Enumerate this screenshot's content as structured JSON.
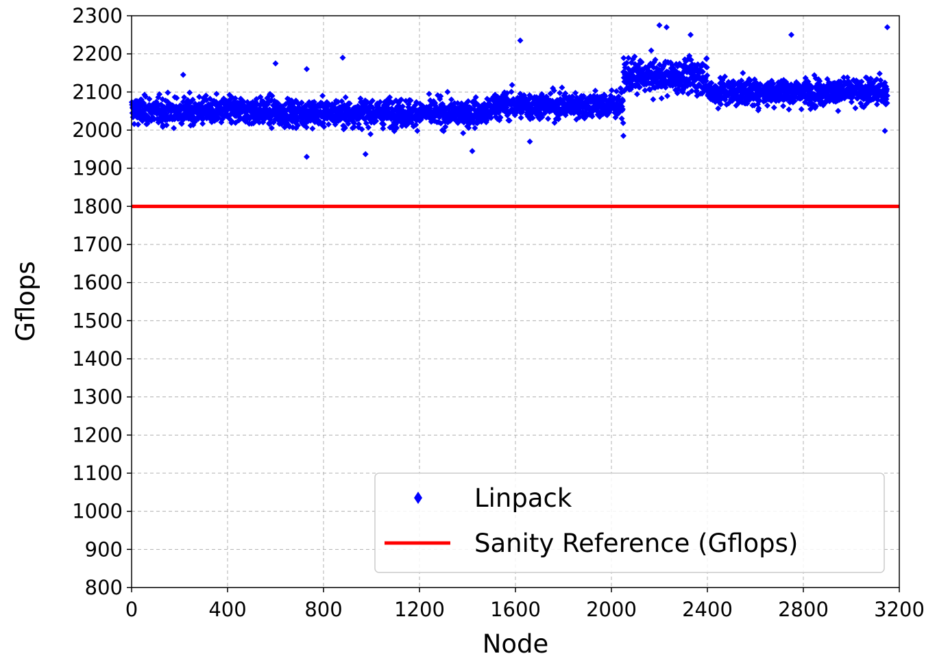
{
  "chart_data": {
    "type": "scatter",
    "title": "",
    "xlabel": "Node",
    "ylabel": "Gflops",
    "xlim": [
      0,
      3200
    ],
    "ylim": [
      800,
      2300
    ],
    "xticks": [
      0,
      400,
      800,
      1200,
      1600,
      2000,
      2400,
      2800,
      3200
    ],
    "yticks": [
      800,
      900,
      1000,
      1100,
      1200,
      1300,
      1400,
      1500,
      1600,
      1700,
      1800,
      1900,
      2000,
      2100,
      2200,
      2300
    ],
    "grid": true,
    "legend_position": "lower-right",
    "legend": [
      "Linpack",
      "Sanity Reference (Gflops)"
    ],
    "series": [
      {
        "name": "Linpack",
        "kind": "scatter",
        "marker": "diamond",
        "color": "#0000ff",
        "note": "~3150 nodes; approximate band centers by node range with scatter spread",
        "bands": [
          {
            "x_range": [
              0,
              600
            ],
            "center": 2050,
            "spread": 45
          },
          {
            "x_range": [
              600,
              1500
            ],
            "center": 2045,
            "spread": 45
          },
          {
            "x_range": [
              1500,
              2050
            ],
            "center": 2065,
            "spread": 45
          },
          {
            "x_range": [
              2050,
              2400
            ],
            "center": 2140,
            "spread": 55
          },
          {
            "x_range": [
              2400,
              3150
            ],
            "center": 2100,
            "spread": 45
          }
        ],
        "outliers": [
          {
            "x": 215,
            "y": 2145
          },
          {
            "x": 600,
            "y": 2175
          },
          {
            "x": 730,
            "y": 2160
          },
          {
            "x": 880,
            "y": 2190
          },
          {
            "x": 1620,
            "y": 2235
          },
          {
            "x": 2200,
            "y": 2275
          },
          {
            "x": 2230,
            "y": 2270
          },
          {
            "x": 3150,
            "y": 2270
          },
          {
            "x": 730,
            "y": 1930
          },
          {
            "x": 975,
            "y": 1937
          },
          {
            "x": 1420,
            "y": 1945
          },
          {
            "x": 1660,
            "y": 1970
          },
          {
            "x": 2050,
            "y": 1985
          },
          {
            "x": 3140,
            "y": 1998
          },
          {
            "x": 2330,
            "y": 2250
          },
          {
            "x": 2750,
            "y": 2250
          }
        ]
      },
      {
        "name": "Sanity Reference (Gflops)",
        "kind": "line",
        "color": "#ff0000",
        "y": 1800
      }
    ]
  }
}
